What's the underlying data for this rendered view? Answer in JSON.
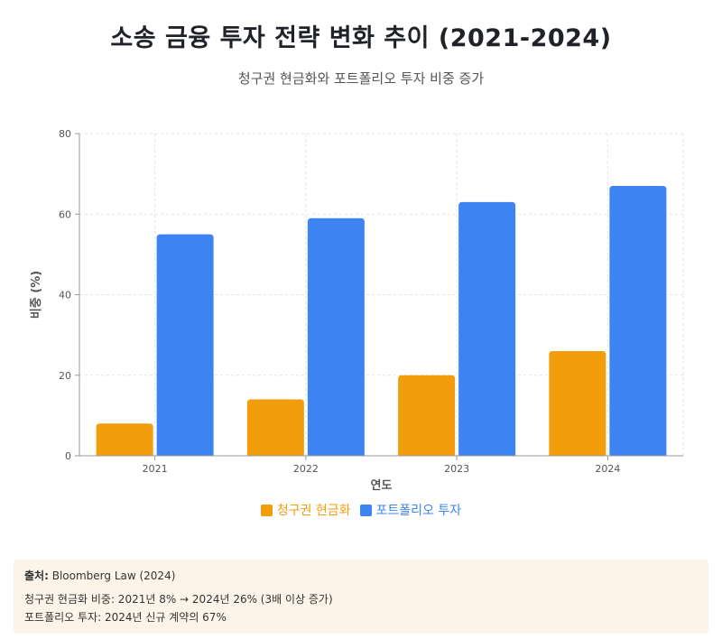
{
  "header": {
    "title": "소송 금융 투자 전략 변화 추이 (2021-2024)",
    "subtitle": "청구권 현금화와 포트폴리오 투자 비중 증가"
  },
  "chart_data": {
    "type": "bar",
    "categories": [
      "2021",
      "2022",
      "2023",
      "2024"
    ],
    "series": [
      {
        "name": "청구권 현금화",
        "values": [
          8,
          14,
          20,
          26
        ],
        "color": "#f29e0c"
      },
      {
        "name": "포트폴리오 투자",
        "values": [
          55,
          59,
          63,
          67
        ],
        "color": "#3d84f2"
      }
    ],
    "xlabel": "연도",
    "ylabel": "비중 (%)",
    "ylim": [
      0,
      80
    ],
    "yticks": [
      "0",
      "20",
      "40",
      "60",
      "80"
    ],
    "grid": true,
    "legend": "bottom"
  },
  "source": {
    "label": "출처:",
    "text": "Bloomberg Law (2024)",
    "note1": "청구권 현금화 비중: 2021년 8% → 2024년 26% (3배 이상 증가)",
    "note2": "포트폴리오 투자: 2024년 신규 계약의 67%"
  }
}
